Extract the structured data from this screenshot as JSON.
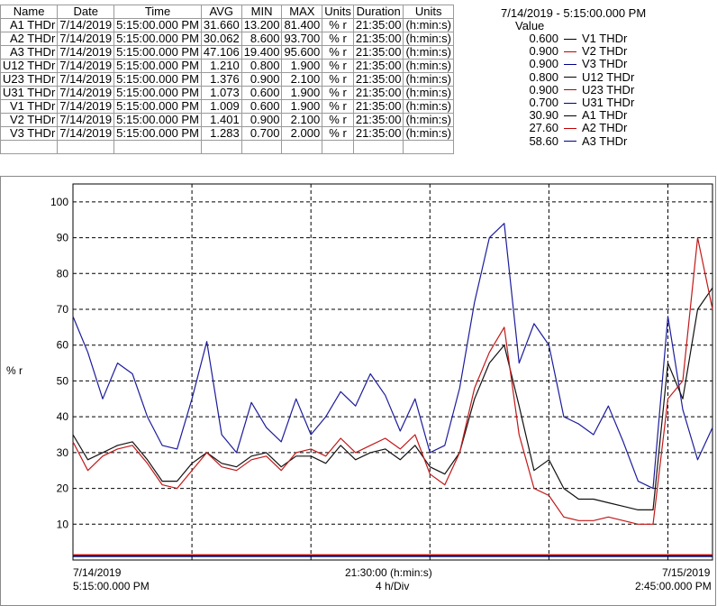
{
  "table": {
    "headers": [
      "Name",
      "Date",
      "Time",
      "AVG",
      "MIN",
      "MAX",
      "Units",
      "Duration",
      "Units"
    ],
    "rows": [
      [
        "A1 THDr",
        "7/14/2019",
        "5:15:00.000 PM",
        "31.660",
        "13.200",
        "81.400",
        "% r",
        "21:35:00",
        "(h:min:s)"
      ],
      [
        "A2 THDr",
        "7/14/2019",
        "5:15:00.000 PM",
        "30.062",
        "8.600",
        "93.700",
        "% r",
        "21:35:00",
        "(h:min:s)"
      ],
      [
        "A3 THDr",
        "7/14/2019",
        "5:15:00.000 PM",
        "47.106",
        "19.400",
        "95.600",
        "% r",
        "21:35:00",
        "(h:min:s)"
      ],
      [
        "U12 THDr",
        "7/14/2019",
        "5:15:00.000 PM",
        "1.210",
        "0.800",
        "1.900",
        "% r",
        "21:35:00",
        "(h:min:s)"
      ],
      [
        "U23 THDr",
        "7/14/2019",
        "5:15:00.000 PM",
        "1.376",
        "0.900",
        "2.100",
        "% r",
        "21:35:00",
        "(h:min:s)"
      ],
      [
        "U31 THDr",
        "7/14/2019",
        "5:15:00.000 PM",
        "1.073",
        "0.600",
        "1.900",
        "% r",
        "21:35:00",
        "(h:min:s)"
      ],
      [
        "V1 THDr",
        "7/14/2019",
        "5:15:00.000 PM",
        "1.009",
        "0.600",
        "1.900",
        "% r",
        "21:35:00",
        "(h:min:s)"
      ],
      [
        "V2 THDr",
        "7/14/2019",
        "5:15:00.000 PM",
        "1.401",
        "0.900",
        "2.100",
        "% r",
        "21:35:00",
        "(h:min:s)"
      ],
      [
        "V3 THDr",
        "7/14/2019",
        "5:15:00.000 PM",
        "1.283",
        "0.700",
        "2.000",
        "% r",
        "21:35:00",
        "(h:min:s)"
      ]
    ]
  },
  "readout": {
    "timestamp": "7/14/2019 - 5:15:00.000 PM",
    "value_header": "Value",
    "rows": [
      {
        "value": "0.600",
        "name": "V1 THDr",
        "color": "#000000"
      },
      {
        "value": "0.900",
        "name": "V2 THDr",
        "color": "#c00000"
      },
      {
        "value": "0.900",
        "name": "V3 THDr",
        "color": "#00008b"
      },
      {
        "value": "0.800",
        "name": "U12 THDr",
        "color": "#000000"
      },
      {
        "value": "0.900",
        "name": "U23 THDr",
        "color": "#c00000"
      },
      {
        "value": "0.700",
        "name": "U31 THDr",
        "color": "#00008b"
      },
      {
        "value": "30.90",
        "name": "A1 THDr",
        "color": "#000000"
      },
      {
        "value": "27.60",
        "name": "A2 THDr",
        "color": "#c00000"
      },
      {
        "value": "58.60",
        "name": "A3 THDr",
        "color": "#00008b"
      }
    ]
  },
  "axis": {
    "y_unit": "% r",
    "x_left_date": "7/14/2019",
    "x_left_time": "5:15:00.000 PM",
    "x_mid_time": "21:30:00 (h:min:s)",
    "x_mid_div": "4 h/Div",
    "x_right_date": "7/15/2019",
    "x_right_time": "2:45:00.000 PM"
  },
  "chart_data": {
    "type": "line",
    "ylabel": "% r",
    "ylim": [
      0,
      105
    ],
    "yticks": [
      10,
      20,
      30,
      40,
      50,
      60,
      70,
      80,
      90,
      100
    ],
    "x_range_hours": [
      0,
      21.5
    ],
    "x_div_hours": 4,
    "grid": true,
    "series": [
      {
        "name": "A3 THDr",
        "color": "#1c1c9c",
        "x": [
          0,
          0.5,
          1,
          1.5,
          2,
          2.5,
          3,
          3.5,
          4,
          4.5,
          5,
          5.5,
          6,
          6.5,
          7,
          7.5,
          8,
          8.5,
          9,
          9.5,
          10,
          10.5,
          11,
          11.5,
          12,
          12.5,
          13,
          13.5,
          14,
          14.5,
          15,
          15.5,
          16,
          16.5,
          17,
          17.5,
          18,
          18.5,
          19,
          19.5,
          20,
          20.5,
          21,
          21.5
        ],
        "y": [
          68,
          58,
          45,
          55,
          52,
          40,
          32,
          31,
          45,
          61,
          35,
          30,
          44,
          37,
          33,
          45,
          35,
          40,
          47,
          43,
          52,
          46,
          36,
          45,
          30,
          32,
          48,
          72,
          90,
          94,
          55,
          66,
          60,
          40,
          38,
          35,
          43,
          33,
          22,
          20,
          68,
          42,
          28,
          37
        ]
      },
      {
        "name": "A1 THDr",
        "color": "#111111",
        "x": [
          0,
          0.5,
          1,
          1.5,
          2,
          2.5,
          3,
          3.5,
          4,
          4.5,
          5,
          5.5,
          6,
          6.5,
          7,
          7.5,
          8,
          8.5,
          9,
          9.5,
          10,
          10.5,
          11,
          11.5,
          12,
          12.5,
          13,
          13.5,
          14,
          14.5,
          15,
          15.5,
          16,
          16.5,
          17,
          17.5,
          18,
          18.5,
          19,
          19.5,
          20,
          20.5,
          21,
          21.5
        ],
        "y": [
          35,
          28,
          30,
          32,
          33,
          28,
          22,
          22,
          27,
          30,
          27,
          26,
          29,
          30,
          26,
          29,
          29,
          27,
          32,
          28,
          30,
          31,
          28,
          32,
          26,
          24,
          30,
          45,
          55,
          60,
          43,
          25,
          28,
          20,
          17,
          17,
          16,
          15,
          14,
          14,
          55,
          45,
          70,
          76
        ]
      },
      {
        "name": "A2 THDr",
        "color": "#c21818",
        "x": [
          0,
          0.5,
          1,
          1.5,
          2,
          2.5,
          3,
          3.5,
          4,
          4.5,
          5,
          5.5,
          6,
          6.5,
          7,
          7.5,
          8,
          8.5,
          9,
          9.5,
          10,
          10.5,
          11,
          11.5,
          12,
          12.5,
          13,
          13.5,
          14,
          14.5,
          15,
          15.5,
          16,
          16.5,
          17,
          17.5,
          18,
          18.5,
          19,
          19.5,
          20,
          20.5,
          21,
          21.5
        ],
        "y": [
          33,
          25,
          29,
          31,
          32,
          27,
          21,
          20,
          25,
          30,
          26,
          25,
          28,
          29,
          25,
          30,
          31,
          29,
          34,
          30,
          32,
          34,
          31,
          35,
          24,
          21,
          30,
          48,
          58,
          65,
          35,
          20,
          18,
          12,
          11,
          11,
          12,
          11,
          10,
          10,
          45,
          50,
          90,
          70
        ]
      },
      {
        "name": "V1 THDr",
        "color": "#000000",
        "x": [
          0,
          21.5
        ],
        "y": [
          1.0,
          1.0
        ]
      },
      {
        "name": "V2 THDr",
        "color": "#c00000",
        "x": [
          0,
          21.5
        ],
        "y": [
          1.4,
          1.4
        ]
      },
      {
        "name": "V3 THDr",
        "color": "#00008b",
        "x": [
          0,
          21.5
        ],
        "y": [
          1.3,
          1.3
        ]
      },
      {
        "name": "U12 THDr",
        "color": "#000000",
        "x": [
          0,
          21.5
        ],
        "y": [
          1.2,
          1.2
        ]
      },
      {
        "name": "U23 THDr",
        "color": "#c00000",
        "x": [
          0,
          21.5
        ],
        "y": [
          1.4,
          1.4
        ]
      },
      {
        "name": "U31 THDr",
        "color": "#00008b",
        "x": [
          0,
          21.5
        ],
        "y": [
          1.1,
          1.1
        ]
      }
    ]
  }
}
